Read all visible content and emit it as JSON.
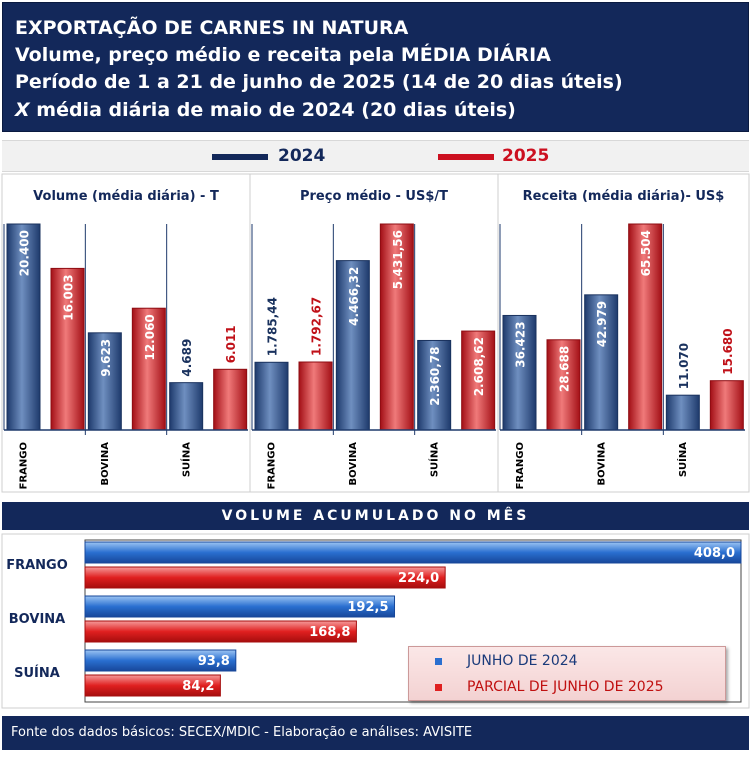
{
  "header": {
    "line1": "EXPORTAÇÃO DE CARNES IN NATURA",
    "line2": "Volume, preço médio e receita pela MÉDIA DIÁRIA",
    "line3": "Período de 1 a 21 de junho de 2025 (14 de 20 dias úteis)",
    "line4_prefix": "X",
    "line4_rest": " média diária de maio de 2024 (20 dias úteis)"
  },
  "legend_top": {
    "y2024": "2024",
    "y2025": "2025"
  },
  "colors": {
    "c2024": "#2c4f86",
    "c2025": "#d31c22",
    "navy": "#13285a"
  },
  "chart_data": [
    {
      "type": "bar",
      "title": "Volume (média diária) - T",
      "categories": [
        "FRANGO",
        "BOVINA",
        "SUÍNA"
      ],
      "series": [
        {
          "name": "2024",
          "values": [
            20400,
            9623,
            4689
          ],
          "labels": [
            "20.400",
            "9.623",
            "4.689"
          ]
        },
        {
          "name": "2025",
          "values": [
            16003,
            12060,
            6011
          ],
          "labels": [
            "16.003",
            "12.060",
            "6.011"
          ]
        }
      ],
      "ylim": [
        0,
        20400
      ]
    },
    {
      "type": "bar",
      "title": "Preço médio - US$/T",
      "categories": [
        "FRANGO",
        "BOVINA",
        "SUÍNA"
      ],
      "series": [
        {
          "name": "2024",
          "values": [
            1785.44,
            4466.32,
            2360.78
          ],
          "labels": [
            "1.785,44",
            "4.466,32",
            "2.360,78"
          ]
        },
        {
          "name": "2025",
          "values": [
            1792.67,
            5431.56,
            2608.62
          ],
          "labels": [
            "1.792,67",
            "5.431,56",
            "2.608,62"
          ]
        }
      ],
      "ylim": [
        0,
        5431.56
      ]
    },
    {
      "type": "bar",
      "title": "Receita (média diária)- US$",
      "categories": [
        "FRANGO",
        "BOVINA",
        "SUÍNA"
      ],
      "series": [
        {
          "name": "2024",
          "values": [
            36423,
            42979,
            11070
          ],
          "labels": [
            "36.423",
            "42.979",
            "11.070"
          ]
        },
        {
          "name": "2025",
          "values": [
            28688,
            65504,
            15680
          ],
          "labels": [
            "28.688",
            "65.504",
            "15.680"
          ]
        }
      ],
      "ylim": [
        0,
        65504
      ]
    },
    {
      "type": "bar",
      "orientation": "horizontal",
      "title": "VOLUME ACUMULADO NO MÊS",
      "categories": [
        "FRANGO",
        "BOVINA",
        "SUÍNA"
      ],
      "series": [
        {
          "name": "JUNHO DE 2024",
          "values": [
            408.0,
            192.5,
            93.8
          ],
          "labels": [
            "408,0",
            "192,5",
            "93,8"
          ]
        },
        {
          "name": "PARCIAL DE JUNHO DE 2025",
          "values": [
            224.0,
            168.8,
            84.2
          ],
          "labels": [
            "224,0",
            "168,8",
            "84,2"
          ]
        }
      ],
      "xlim": [
        0,
        408.0
      ],
      "legend": "bottom-right"
    }
  ],
  "footer": "Fonte dos dados básicos: SECEX/MDIC - Elaboração e análises: AVISITE"
}
